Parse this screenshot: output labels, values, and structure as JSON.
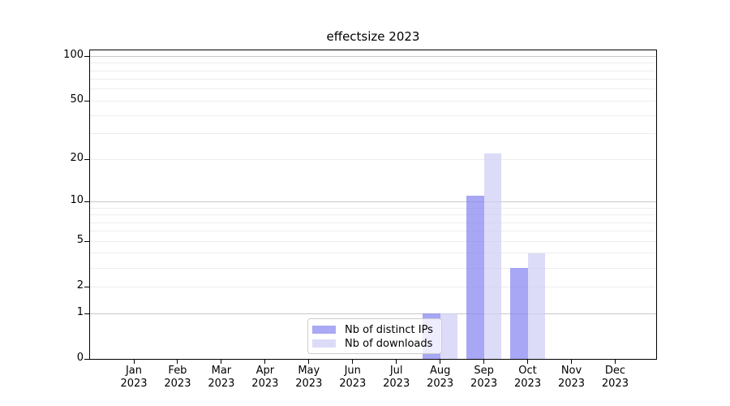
{
  "title": "effectsize 2023",
  "legend": {
    "items": [
      {
        "label": "Nb of distinct IPs",
        "key": "ips"
      },
      {
        "label": "Nb of downloads",
        "key": "downloads"
      }
    ]
  },
  "colors": {
    "ips": "#a9a9f4",
    "downloads": "#dcdcf8",
    "ips_fill": "rgba(133,133,241,0.72)",
    "downloads_fill": "rgba(206,206,245,0.72)",
    "grid_minor": "#ededed",
    "grid_major": "#c8c8c8",
    "axis": "#000000"
  },
  "chart_data": {
    "type": "bar",
    "title": "effectsize 2023",
    "categories": [
      "Jan 2023",
      "Feb 2023",
      "Mar 2023",
      "Apr 2023",
      "May 2023",
      "Jun 2023",
      "Jul 2023",
      "Aug 2023",
      "Sep 2023",
      "Oct 2023",
      "Nov 2023",
      "Dec 2023"
    ],
    "x_tick_months": [
      "Jan",
      "Feb",
      "Mar",
      "Apr",
      "May",
      "Jun",
      "Jul",
      "Aug",
      "Sep",
      "Oct",
      "Nov",
      "Dec"
    ],
    "x_tick_year": "2023",
    "series": [
      {
        "name": "Nb of distinct IPs",
        "key": "ips",
        "values": [
          0,
          0,
          0,
          0,
          0,
          0,
          0,
          1,
          11,
          3,
          0,
          0
        ]
      },
      {
        "name": "Nb of downloads",
        "key": "downloads",
        "values": [
          0,
          0,
          0,
          0,
          0,
          0,
          0,
          1,
          22,
          4,
          0,
          0
        ]
      }
    ],
    "yscale": "log1p",
    "ylim": [
      0,
      110
    ],
    "y_ticks": [
      0,
      1,
      2,
      5,
      10,
      20,
      50,
      100
    ],
    "gridlines": {
      "major": [
        1,
        10,
        100
      ],
      "minor": [
        2,
        3,
        4,
        5,
        6,
        7,
        8,
        9,
        20,
        30,
        40,
        50,
        60,
        70,
        80,
        90
      ]
    },
    "grid": true,
    "legend_position": "lower-center inside axes"
  }
}
